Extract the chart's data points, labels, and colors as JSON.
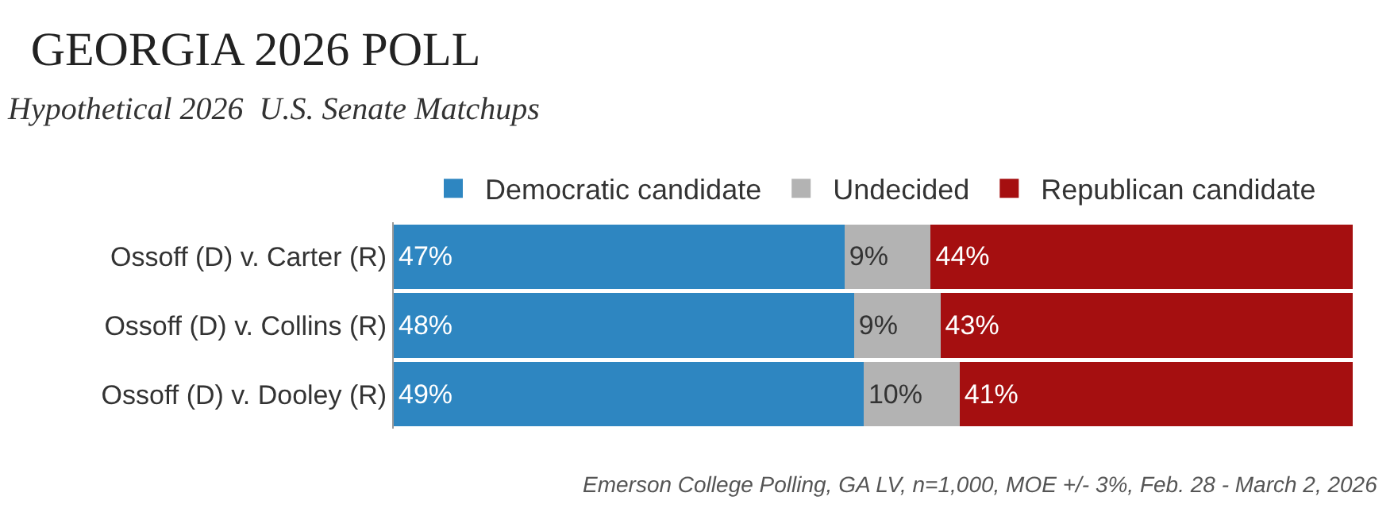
{
  "chart_data": {
    "type": "bar",
    "orientation": "horizontal",
    "stacked": true,
    "title": "GEORGIA 2026 POLL",
    "subtitle": "Hypothetical 2026  U.S. Senate Matchups",
    "categories": [
      "Ossoff (D) v. Carter (R)",
      "Ossoff (D) v. Collins (R)",
      "Ossoff (D) v. Dooley (R)"
    ],
    "series": [
      {
        "name": "Democratic candidate",
        "color": "#2e86c1",
        "values": [
          47,
          48,
          49
        ],
        "value_labels": [
          "47%",
          "48%",
          "49%"
        ]
      },
      {
        "name": "Undecided",
        "color": "#b3b3b3",
        "values": [
          9,
          9,
          10
        ],
        "value_labels": [
          "9%",
          "9%",
          "10%"
        ]
      },
      {
        "name": "Republican candidate",
        "color": "#a50f10",
        "values": [
          44,
          43,
          41
        ],
        "value_labels": [
          "44%",
          "43%",
          "41%"
        ]
      }
    ],
    "legend": "top",
    "annotations": [
      "Emerson College Polling, GA LV, n=1,000, MOE +/- 3%, Feb. 28 - March 2, 2026"
    ]
  }
}
